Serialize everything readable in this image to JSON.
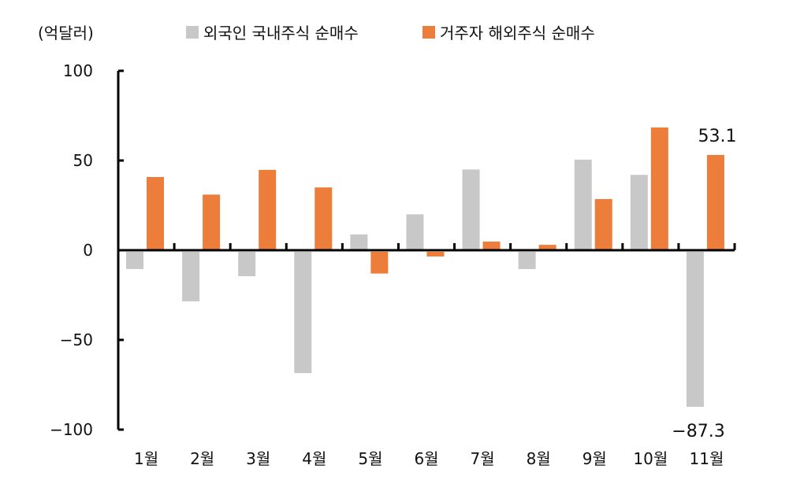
{
  "header": {
    "unit_label": "(억달러)"
  },
  "legend": [
    {
      "label": "외국인 국내주식 순매수",
      "color": "#C8C8C8"
    },
    {
      "label": "거주자 해외주식 순매수",
      "color": "#ED7D3A"
    }
  ],
  "annotations": {
    "nov_foreign": "-87.3",
    "nov_resident": "53.1"
  },
  "chart_data": {
    "type": "bar",
    "title": "",
    "xlabel": "",
    "ylabel": "(억달러)",
    "ylim": [
      -100,
      100
    ],
    "yticks": [
      100,
      50,
      0,
      -50,
      -100
    ],
    "grid": false,
    "legend_position": "top",
    "categories": [
      "1월",
      "2월",
      "3월",
      "4월",
      "5월",
      "6월",
      "7월",
      "8월",
      "9월",
      "10월",
      "11월"
    ],
    "series": [
      {
        "name": "외국인 국내주식 순매수",
        "color": "#C8C8C8",
        "values": [
          -10.5,
          -28.5,
          -14.5,
          -68.5,
          8.8,
          20.0,
          45.0,
          -10.5,
          50.5,
          42.0,
          -87.3
        ]
      },
      {
        "name": "거주자 해외주식 순매수",
        "color": "#ED7D3A",
        "values": [
          40.8,
          31.0,
          44.8,
          35.0,
          -13.0,
          -3.5,
          4.8,
          3.0,
          28.5,
          68.4,
          53.1
        ]
      }
    ],
    "data_labels": [
      {
        "category": "11월",
        "series": "외국인 국내주식 순매수",
        "text": "-87.3"
      },
      {
        "category": "11월",
        "series": "거주자 해외주식 순매수",
        "text": "53.1"
      }
    ]
  }
}
